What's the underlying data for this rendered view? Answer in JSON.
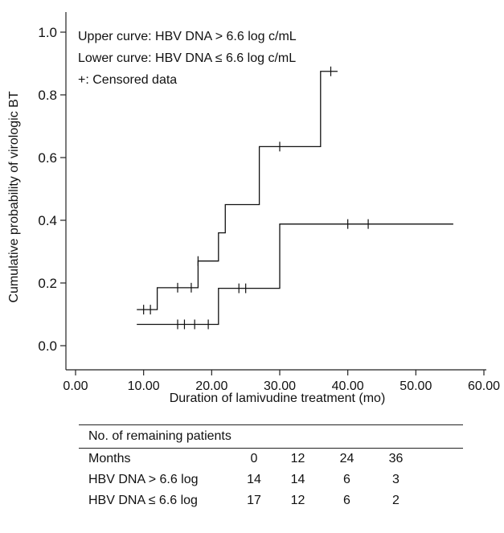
{
  "chart_data": {
    "type": "step",
    "ylabel": "Cumulative probability of virologic BT",
    "xlabel": "Duration of lamivudine treatment (mo)",
    "xlim": [
      0,
      60
    ],
    "ylim": [
      0,
      1.0
    ],
    "xticks": [
      "0.00",
      "10.00",
      "20.00",
      "30.00",
      "40.00",
      "50.00",
      "60.00"
    ],
    "yticks": [
      "0.0",
      "0.2",
      "0.4",
      "0.6",
      "0.8",
      "1.0"
    ],
    "annotations": [
      "Upper curve: HBV DNA > 6.6 log c/mL",
      "Lower curve: HBV DNA ≤ 6.6 log c/mL",
      "+: Censored data"
    ],
    "series": [
      {
        "curve": "upper",
        "steps": [
          [
            9,
            0.115
          ],
          [
            12,
            0.185
          ],
          [
            18,
            0.27
          ],
          [
            21,
            0.36
          ],
          [
            22,
            0.45
          ],
          [
            27,
            0.635
          ],
          [
            36,
            0.875
          ],
          [
            38.5,
            0.875
          ]
        ],
        "censored": [
          [
            10,
            0.115
          ],
          [
            11,
            0.115
          ],
          [
            15,
            0.185
          ],
          [
            17,
            0.185
          ],
          [
            18,
            0.27
          ],
          [
            30,
            0.635
          ],
          [
            37.5,
            0.875
          ]
        ]
      },
      {
        "curve": "lower",
        "steps": [
          [
            9,
            0.068
          ],
          [
            21,
            0.183
          ],
          [
            30,
            0.388
          ],
          [
            55.5,
            0.388
          ]
        ],
        "censored": [
          [
            15,
            0.068
          ],
          [
            16,
            0.068
          ],
          [
            17.5,
            0.068
          ],
          [
            19.5,
            0.068
          ],
          [
            24,
            0.183
          ],
          [
            25,
            0.183
          ],
          [
            40,
            0.388
          ],
          [
            43,
            0.388
          ]
        ]
      }
    ]
  },
  "risk_table": {
    "title": "No. of remaining patients",
    "header": {
      "label": "Months",
      "values": [
        "0",
        "12",
        "24",
        "36"
      ]
    },
    "rows": [
      {
        "label": "HBV DNA > 6.6 log",
        "values": [
          "14",
          "14",
          "6",
          "3"
        ]
      },
      {
        "label": "HBV DNA ≤ 6.6 log",
        "values": [
          "17",
          "12",
          "6",
          "2"
        ]
      }
    ]
  }
}
